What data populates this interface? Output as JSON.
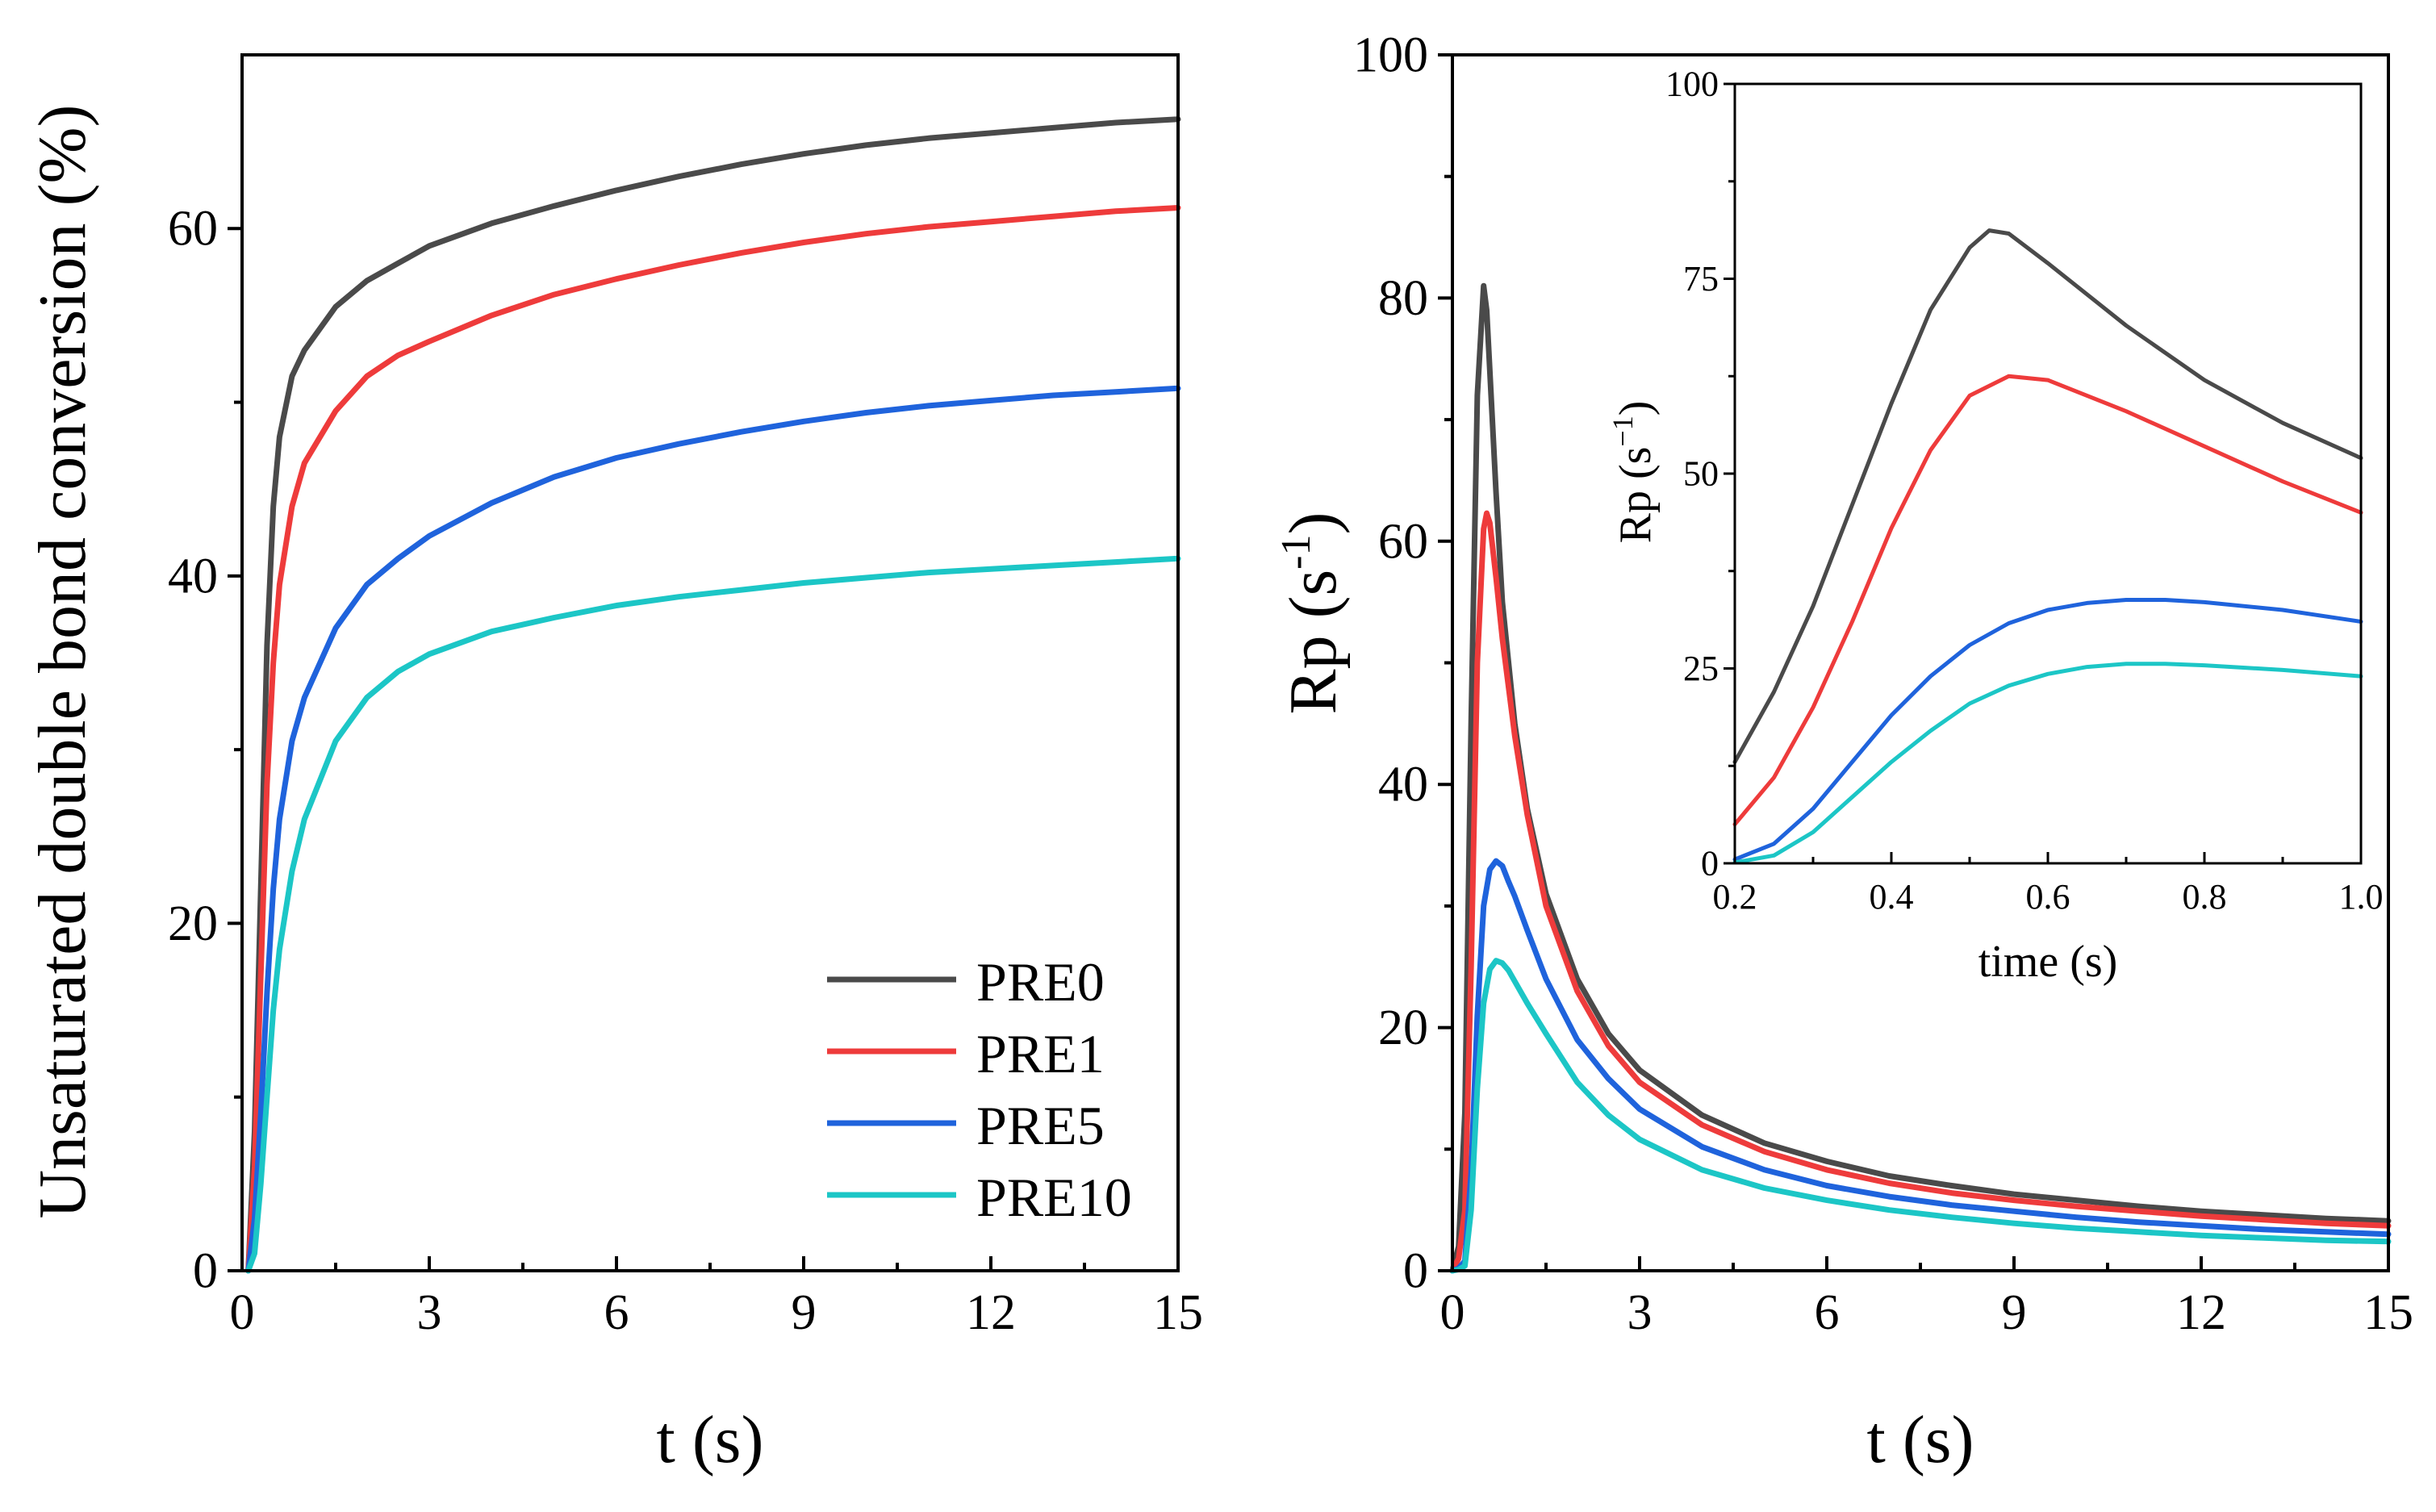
{
  "colors": {
    "PRE0": "#4a4a4a",
    "PRE1": "#ee3b3b",
    "PRE5": "#1f63dc",
    "PRE10": "#1cc6c6",
    "axis": "#000000"
  },
  "chart_data": [
    {
      "id": "conversion",
      "type": "line",
      "xlabel": "t (s)",
      "ylabel": "Unsaturated double bond conversion (%)",
      "xlim": [
        0,
        15
      ],
      "ylim": [
        0,
        70
      ],
      "xticks": [
        0,
        3,
        6,
        9,
        12,
        15
      ],
      "yticks": [
        0,
        20,
        40,
        60
      ],
      "legend_position": "bottom-right",
      "series": [
        {
          "name": "PRE0",
          "color_key": "PRE0",
          "x": [
            0.1,
            0.2,
            0.3,
            0.4,
            0.5,
            0.6,
            0.8,
            1.0,
            1.5,
            2.0,
            2.5,
            3.0,
            4.0,
            5.0,
            6.0,
            7.0,
            8.0,
            9.0,
            10.0,
            11.0,
            12.0,
            13.0,
            14.0,
            15.0
          ],
          "y": [
            0,
            8,
            22,
            36,
            44,
            48,
            51.5,
            53,
            55.5,
            57,
            58,
            59,
            60.3,
            61.3,
            62.2,
            63,
            63.7,
            64.3,
            64.8,
            65.2,
            65.5,
            65.8,
            66.1,
            66.3
          ]
        },
        {
          "name": "PRE1",
          "color_key": "PRE1",
          "x": [
            0.1,
            0.2,
            0.3,
            0.4,
            0.5,
            0.6,
            0.8,
            1.0,
            1.5,
            2.0,
            2.5,
            3.0,
            4.0,
            5.0,
            6.0,
            7.0,
            8.0,
            9.0,
            10.0,
            11.0,
            12.0,
            13.0,
            14.0,
            15.0
          ],
          "y": [
            0,
            6,
            17,
            28,
            35,
            39.5,
            44,
            46.5,
            49.5,
            51.5,
            52.7,
            53.5,
            55,
            56.2,
            57.1,
            57.9,
            58.6,
            59.2,
            59.7,
            60.1,
            60.4,
            60.7,
            61,
            61.2
          ]
        },
        {
          "name": "PRE5",
          "color_key": "PRE5",
          "x": [
            0.1,
            0.2,
            0.3,
            0.4,
            0.5,
            0.6,
            0.8,
            1.0,
            1.5,
            2.0,
            2.5,
            3.0,
            4.0,
            5.0,
            6.0,
            7.0,
            8.0,
            9.0,
            10.0,
            11.0,
            12.0,
            13.0,
            14.0,
            15.0
          ],
          "y": [
            0,
            3,
            9,
            16,
            22,
            26,
            30.5,
            33,
            37,
            39.5,
            41,
            42.3,
            44.2,
            45.7,
            46.8,
            47.6,
            48.3,
            48.9,
            49.4,
            49.8,
            50.1,
            50.4,
            50.6,
            50.8
          ]
        },
        {
          "name": "PRE10",
          "color_key": "PRE10",
          "x": [
            0.1,
            0.2,
            0.3,
            0.4,
            0.5,
            0.6,
            0.8,
            1.0,
            1.5,
            2.0,
            2.5,
            3.0,
            4.0,
            5.0,
            6.0,
            7.0,
            8.0,
            9.0,
            10.0,
            11.0,
            12.0,
            13.0,
            14.0,
            15.0
          ],
          "y": [
            0,
            1,
            5,
            10,
            15,
            18.5,
            23,
            26,
            30.5,
            33,
            34.5,
            35.5,
            36.8,
            37.6,
            38.3,
            38.8,
            39.2,
            39.6,
            39.9,
            40.2,
            40.4,
            40.6,
            40.8,
            41
          ]
        }
      ]
    },
    {
      "id": "rate",
      "type": "line",
      "xlabel": "t (s)",
      "ylabel_main": "Rp (s",
      "ylabel_sup": "-1",
      "ylabel_tail": ")",
      "xlim": [
        0,
        15
      ],
      "ylim": [
        0,
        100
      ],
      "xticks": [
        0,
        3,
        6,
        9,
        12,
        15
      ],
      "yticks": [
        0,
        20,
        40,
        60,
        80,
        100
      ],
      "series": [
        {
          "name": "PRE0",
          "color_key": "PRE0",
          "x": [
            0,
            0.1,
            0.2,
            0.3,
            0.4,
            0.5,
            0.55,
            0.6,
            0.7,
            0.8,
            1.0,
            1.2,
            1.5,
            2.0,
            2.5,
            3.0,
            4.0,
            5.0,
            6.0,
            7.0,
            8.0,
            9.0,
            10.0,
            11.0,
            12.0,
            13.0,
            14.0,
            15.0
          ],
          "y": [
            0,
            2,
            13,
            45,
            72,
            81,
            79,
            74,
            64,
            55,
            45,
            38,
            31,
            24,
            19.5,
            16.5,
            12.8,
            10.5,
            9,
            7.8,
            7,
            6.3,
            5.8,
            5.3,
            4.9,
            4.6,
            4.3,
            4.1
          ]
        },
        {
          "name": "PRE1",
          "color_key": "PRE1",
          "x": [
            0,
            0.1,
            0.2,
            0.3,
            0.4,
            0.5,
            0.55,
            0.6,
            0.7,
            0.8,
            1.0,
            1.2,
            1.5,
            2.0,
            2.5,
            3.0,
            4.0,
            5.0,
            6.0,
            7.0,
            8.0,
            9.0,
            10.0,
            11.0,
            12.0,
            13.0,
            14.0,
            15.0
          ],
          "y": [
            0,
            1,
            5,
            25,
            50,
            61,
            62.3,
            61.5,
            57,
            52,
            44,
            37.5,
            30,
            23,
            18.5,
            15.5,
            12,
            9.8,
            8.3,
            7.2,
            6.4,
            5.8,
            5.3,
            4.9,
            4.5,
            4.2,
            3.9,
            3.7
          ]
        },
        {
          "name": "PRE5",
          "color_key": "PRE5",
          "x": [
            0,
            0.1,
            0.2,
            0.3,
            0.4,
            0.5,
            0.6,
            0.7,
            0.8,
            0.9,
            1.0,
            1.2,
            1.5,
            2.0,
            2.5,
            3.0,
            4.0,
            5.0,
            6.0,
            7.0,
            8.0,
            9.0,
            10.0,
            11.0,
            12.0,
            13.0,
            14.0,
            15.0
          ],
          "y": [
            0,
            0.2,
            0.8,
            8,
            21,
            30,
            33,
            33.7,
            33.3,
            32,
            30.8,
            28,
            24,
            19,
            15.8,
            13.3,
            10.2,
            8.3,
            7,
            6.1,
            5.4,
            4.9,
            4.4,
            4,
            3.7,
            3.4,
            3.2,
            3
          ]
        },
        {
          "name": "PRE10",
          "color_key": "PRE10",
          "x": [
            0,
            0.1,
            0.2,
            0.3,
            0.4,
            0.5,
            0.6,
            0.7,
            0.8,
            0.9,
            1.0,
            1.2,
            1.5,
            2.0,
            2.5,
            3.0,
            4.0,
            5.0,
            6.0,
            7.0,
            8.0,
            9.0,
            10.0,
            11.0,
            12.0,
            13.0,
            14.0,
            15.0
          ],
          "y": [
            0,
            0.1,
            0.4,
            5,
            15,
            22,
            24.8,
            25.5,
            25.3,
            24.7,
            23.8,
            22,
            19.5,
            15.5,
            12.8,
            10.8,
            8.3,
            6.8,
            5.8,
            5,
            4.4,
            3.9,
            3.5,
            3.2,
            2.9,
            2.7,
            2.5,
            2.4
          ]
        }
      ]
    },
    {
      "id": "inset",
      "type": "line",
      "xlabel": "time (s)",
      "ylabel_main": "Rp (s",
      "ylabel_sup": "−1",
      "ylabel_tail": ")",
      "xlim": [
        0.2,
        1.0
      ],
      "ylim": [
        0,
        100
      ],
      "xticks": [
        0.2,
        0.4,
        0.6,
        0.8,
        1.0
      ],
      "xtick_labels": [
        "0.2",
        "0.4",
        "0.6",
        "0.8",
        "1.0"
      ],
      "yticks": [
        0,
        25,
        50,
        75,
        100
      ],
      "series": [
        {
          "name": "PRE0",
          "color_key": "PRE0",
          "x": [
            0.2,
            0.25,
            0.3,
            0.35,
            0.4,
            0.45,
            0.5,
            0.525,
            0.55,
            0.6,
            0.7,
            0.8,
            0.9,
            1.0
          ],
          "y": [
            13,
            22,
            33,
            46,
            59,
            71,
            79,
            81.2,
            80.8,
            77,
            69,
            62,
            56.5,
            52
          ]
        },
        {
          "name": "PRE1",
          "color_key": "PRE1",
          "x": [
            0.2,
            0.25,
            0.3,
            0.35,
            0.4,
            0.45,
            0.5,
            0.55,
            0.6,
            0.7,
            0.8,
            0.9,
            1.0
          ],
          "y": [
            5,
            11,
            20,
            31,
            43,
            53,
            60,
            62.5,
            62,
            58,
            53.5,
            49,
            45
          ]
        },
        {
          "name": "PRE5",
          "color_key": "PRE5",
          "x": [
            0.2,
            0.25,
            0.3,
            0.35,
            0.4,
            0.45,
            0.5,
            0.55,
            0.6,
            0.65,
            0.7,
            0.75,
            0.8,
            0.9,
            1.0
          ],
          "y": [
            0.5,
            2.5,
            7,
            13,
            19,
            24,
            28,
            30.8,
            32.5,
            33.4,
            33.8,
            33.8,
            33.5,
            32.5,
            31
          ]
        },
        {
          "name": "PRE10",
          "color_key": "PRE10",
          "x": [
            0.2,
            0.25,
            0.3,
            0.35,
            0.4,
            0.45,
            0.5,
            0.55,
            0.6,
            0.65,
            0.7,
            0.75,
            0.8,
            0.9,
            1.0
          ],
          "y": [
            0.1,
            1,
            4,
            8.5,
            13,
            17,
            20.5,
            22.8,
            24.3,
            25.2,
            25.6,
            25.6,
            25.4,
            24.8,
            24
          ]
        }
      ]
    }
  ],
  "legend": [
    {
      "label": "PRE0",
      "color_key": "PRE0"
    },
    {
      "label": "PRE1",
      "color_key": "PRE1"
    },
    {
      "label": "PRE5",
      "color_key": "PRE5"
    },
    {
      "label": "PRE10",
      "color_key": "PRE10"
    }
  ]
}
